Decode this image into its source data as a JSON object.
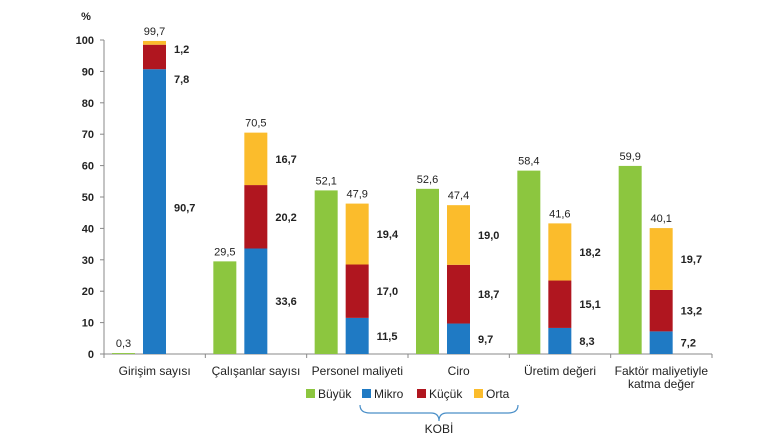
{
  "chart_data": {
    "type": "bar",
    "ylabel": "%",
    "ylim": [
      0,
      100
    ],
    "yticks": [
      0,
      10,
      20,
      30,
      40,
      50,
      60,
      70,
      80,
      90,
      100
    ],
    "categories": [
      [
        "Girişim sayısı"
      ],
      [
        "Çalışanlar sayısı"
      ],
      [
        "Personel maliyeti"
      ],
      [
        "Ciro"
      ],
      [
        "Üretim değeri"
      ],
      [
        "Faktör maliyetiyle",
        "katma değer"
      ]
    ],
    "series": [
      {
        "name": "Büyük",
        "color": "#8cc63f",
        "values": [
          0.3,
          29.5,
          52.1,
          52.6,
          58.4,
          59.9
        ]
      },
      {
        "name": "Mikro",
        "color": "#1f7ac4",
        "values": [
          90.7,
          33.6,
          11.5,
          9.7,
          8.3,
          7.2
        ]
      },
      {
        "name": "Küçük",
        "color": "#b0161f",
        "values": [
          7.8,
          20.2,
          17.0,
          18.7,
          15.1,
          13.2
        ]
      },
      {
        "name": "Orta",
        "color": "#fbbc2c",
        "values": [
          1.2,
          16.7,
          19.4,
          19.0,
          18.2,
          19.7
        ]
      }
    ],
    "big_labels": [
      "0,3",
      "29,5",
      "52,1",
      "52,6",
      "58,4",
      "59,9"
    ],
    "kobi_totals": [
      "99,7",
      "70,5",
      "47,9",
      "47,4",
      "41,6",
      "40,1"
    ],
    "kobi_labels": {
      "Mikro": [
        "90,7",
        "33,6",
        "11,5",
        "9,7",
        "8,3",
        "7,2"
      ],
      "Küçük": [
        "7,8",
        "20,2",
        "17,0",
        "18,7",
        "15,1",
        "13,2"
      ],
      "Orta": [
        "1,2",
        "16,7",
        "19,4",
        "19,0",
        "18,2",
        "19,7"
      ]
    },
    "kobi_group_label": "KOBİ",
    "legend_position": "bottom",
    "grid": false
  }
}
